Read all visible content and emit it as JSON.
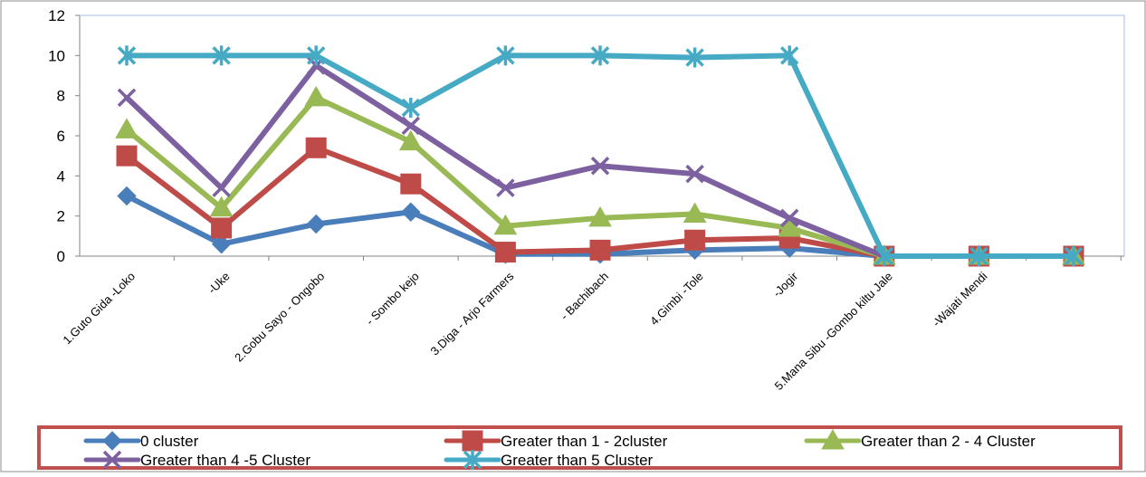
{
  "chart_data": {
    "type": "line",
    "categories": [
      "1.Guto Gida -Loko",
      "-Uke",
      "2.Gobu Sayo - Ongobo",
      "- Sombo kejo",
      "3.Diga - Arjo Farmers",
      "- Bachibach",
      "4.Gimbi -Tole",
      "-Jogir",
      "5.Mana Sibu -Gombo kiltu Jale",
      "-Wajati Mendi",
      ""
    ],
    "ylim": [
      0,
      12
    ],
    "yticks": [
      0,
      2,
      4,
      6,
      8,
      10,
      12
    ],
    "grid": false,
    "legend_position": "bottom",
    "series": [
      {
        "name": "0 cluster",
        "color": "#4A7EBB",
        "marker": "diamond",
        "values": [
          3,
          0.6,
          1.6,
          2.2,
          0.1,
          0.1,
          0.3,
          0.4,
          0,
          0,
          0
        ]
      },
      {
        "name": "Greater than 1 - 2cluster",
        "color": "#BE4B48",
        "marker": "square",
        "values": [
          5,
          1.4,
          5.4,
          3.6,
          0.2,
          0.3,
          0.8,
          0.9,
          0,
          0,
          0
        ]
      },
      {
        "name": "Greater than 2 - 4 Cluster",
        "color": "#98B954",
        "marker": "triangle",
        "values": [
          6.3,
          2.4,
          7.9,
          5.7,
          1.5,
          1.9,
          2.1,
          1.4,
          0,
          0,
          0
        ]
      },
      {
        "name": "Greater than 4 -5 Cluster",
        "color": "#7D60A0",
        "marker": "x",
        "values": [
          7.9,
          3.4,
          9.5,
          6.5,
          3.4,
          4.5,
          4.1,
          1.9,
          0,
          0,
          0
        ]
      },
      {
        "name": "Greater than 5 Cluster",
        "color": "#46AAC5",
        "marker": "star",
        "values": [
          10,
          10,
          10,
          7.4,
          10,
          10,
          9.9,
          10,
          0,
          0,
          0
        ]
      }
    ]
  }
}
